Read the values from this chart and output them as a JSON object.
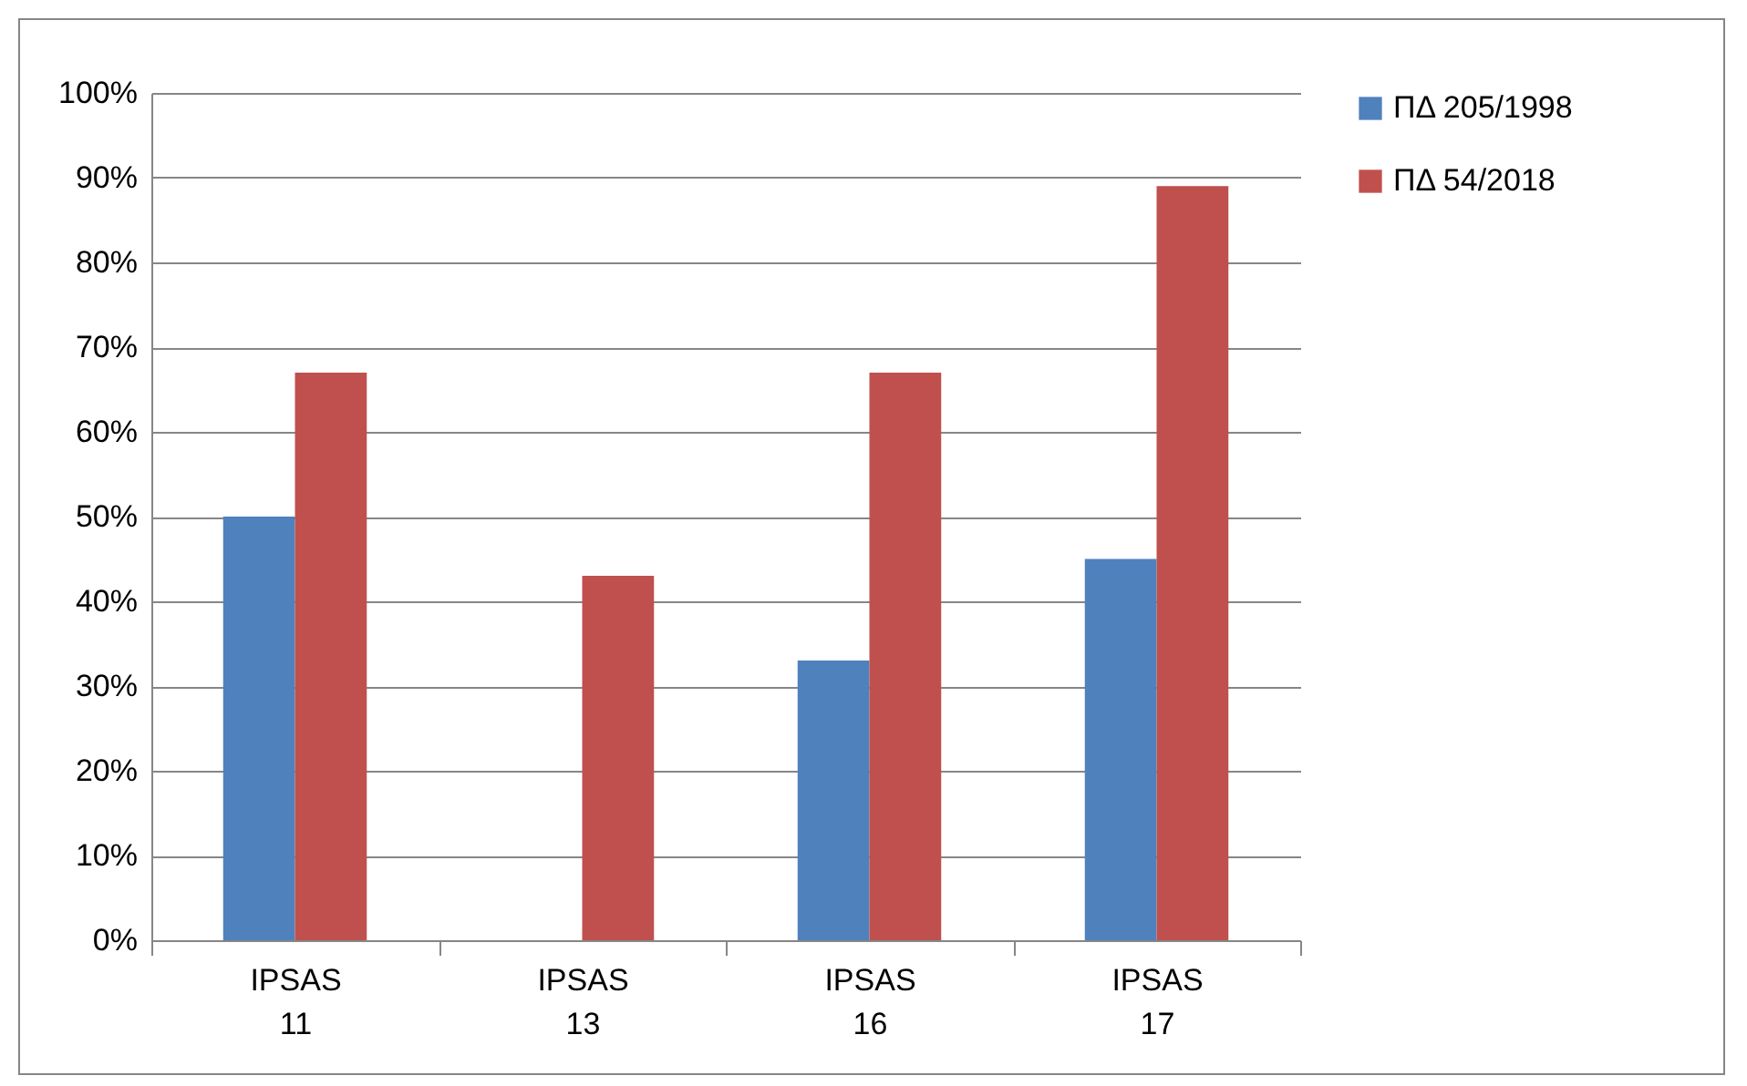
{
  "chart_data": {
    "type": "bar",
    "categories": [
      "IPSAS 11",
      "IPSAS 13",
      "IPSAS 16",
      "IPSAS 17"
    ],
    "series": [
      {
        "name": "ΠΔ 205/1998",
        "color": "#4f81bd",
        "values": [
          50,
          0,
          33,
          45
        ]
      },
      {
        "name": "ΠΔ 54/2018",
        "color": "#c0504d",
        "values": [
          67,
          43,
          67,
          89
        ]
      }
    ],
    "ylim": [
      0,
      100
    ],
    "yticks": [
      {
        "value": 0,
        "label": "0%"
      },
      {
        "value": 10,
        "label": "10%"
      },
      {
        "value": 20,
        "label": "20%"
      },
      {
        "value": 30,
        "label": "30%"
      },
      {
        "value": 40,
        "label": "40%"
      },
      {
        "value": 50,
        "label": "50%"
      },
      {
        "value": 60,
        "label": "60%"
      },
      {
        "value": 70,
        "label": "70%"
      },
      {
        "value": 80,
        "label": "80%"
      },
      {
        "value": 90,
        "label": "90%"
      },
      {
        "value": 100,
        "label": "100%"
      }
    ],
    "grid": "y",
    "legend": "right"
  }
}
